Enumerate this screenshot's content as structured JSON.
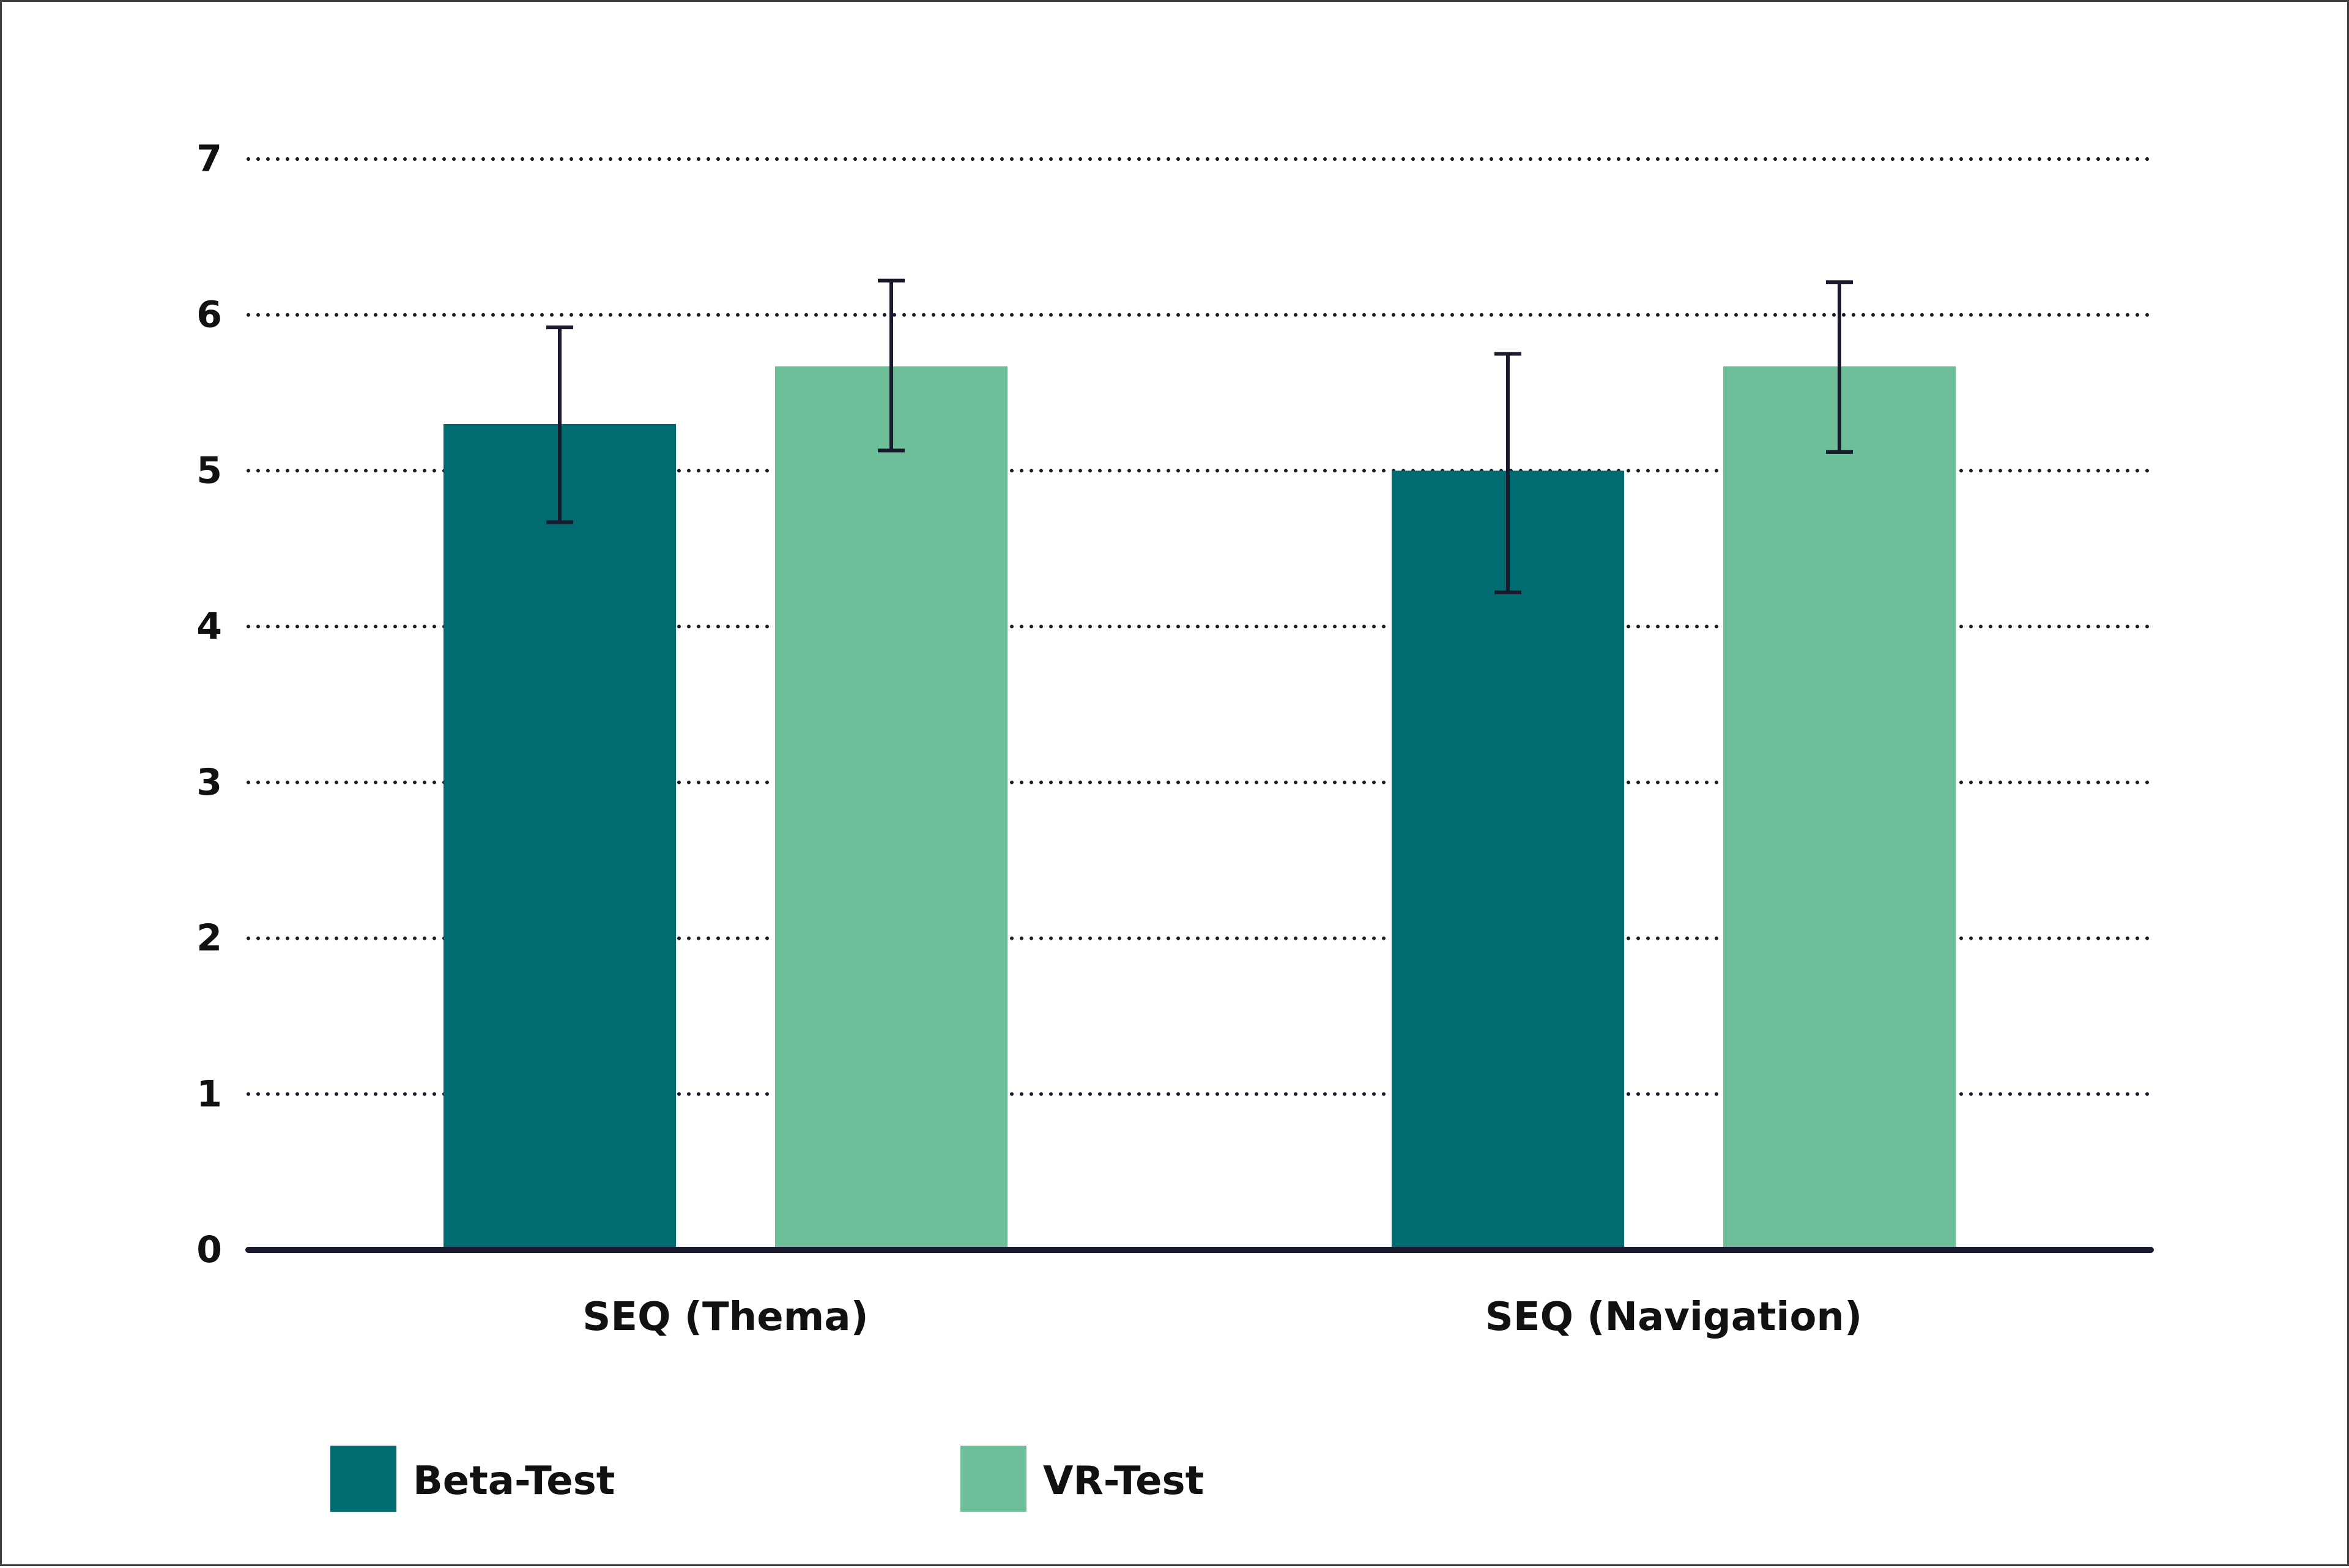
{
  "chart_data": {
    "type": "bar",
    "categories": [
      "SEQ (Thema)",
      "SEQ (Navigation)"
    ],
    "series": [
      {
        "name": "Beta-Test",
        "color": "#006b70",
        "values": [
          5.3,
          5.0
        ],
        "error": [
          [
            4.67,
            5.92
          ],
          [
            4.22,
            5.75
          ]
        ]
      },
      {
        "name": "VR-Test",
        "color": "#6dbf99",
        "values": [
          5.67,
          5.67
        ],
        "error": [
          [
            5.13,
            6.22
          ],
          [
            5.12,
            6.21
          ]
        ]
      }
    ],
    "ylim": [
      0,
      7
    ],
    "yticks": [
      "0",
      "1",
      "2",
      "3",
      "4",
      "5",
      "6",
      "7"
    ],
    "grid": true,
    "grid_style": "dotted",
    "legend_position": "bottom-left",
    "error_bar_color": "#1a1a2e",
    "axis_color": "#1a1a2e",
    "title": "",
    "xlabel": "",
    "ylabel": ""
  }
}
